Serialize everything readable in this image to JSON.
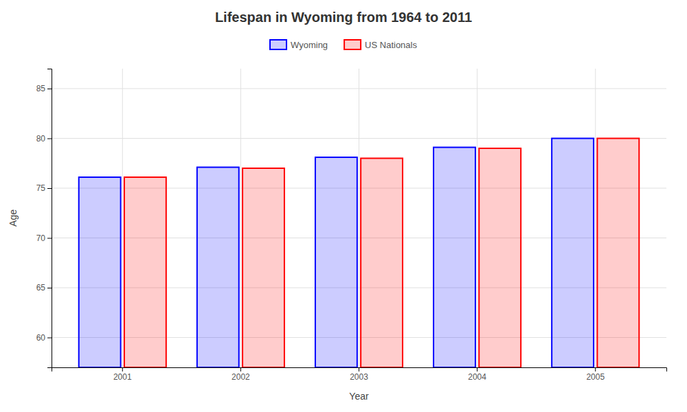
{
  "chart_data": {
    "type": "bar",
    "title": "Lifespan in Wyoming from 1964 to 2011",
    "xlabel": "Year",
    "ylabel": "Age",
    "categories": [
      "2001",
      "2002",
      "2003",
      "2004",
      "2005"
    ],
    "series": [
      {
        "name": "Wyoming",
        "color": "#0000ff",
        "values": [
          76.1,
          77.1,
          78.1,
          79.1,
          80.0
        ]
      },
      {
        "name": "US Nationals",
        "color": "#ff0000",
        "values": [
          76.1,
          77.0,
          78.0,
          79.0,
          80.0
        ]
      }
    ],
    "ylim": [
      57,
      87
    ],
    "yticks": [
      60,
      65,
      70,
      75,
      80,
      85
    ],
    "grid": true,
    "legend": "top"
  }
}
